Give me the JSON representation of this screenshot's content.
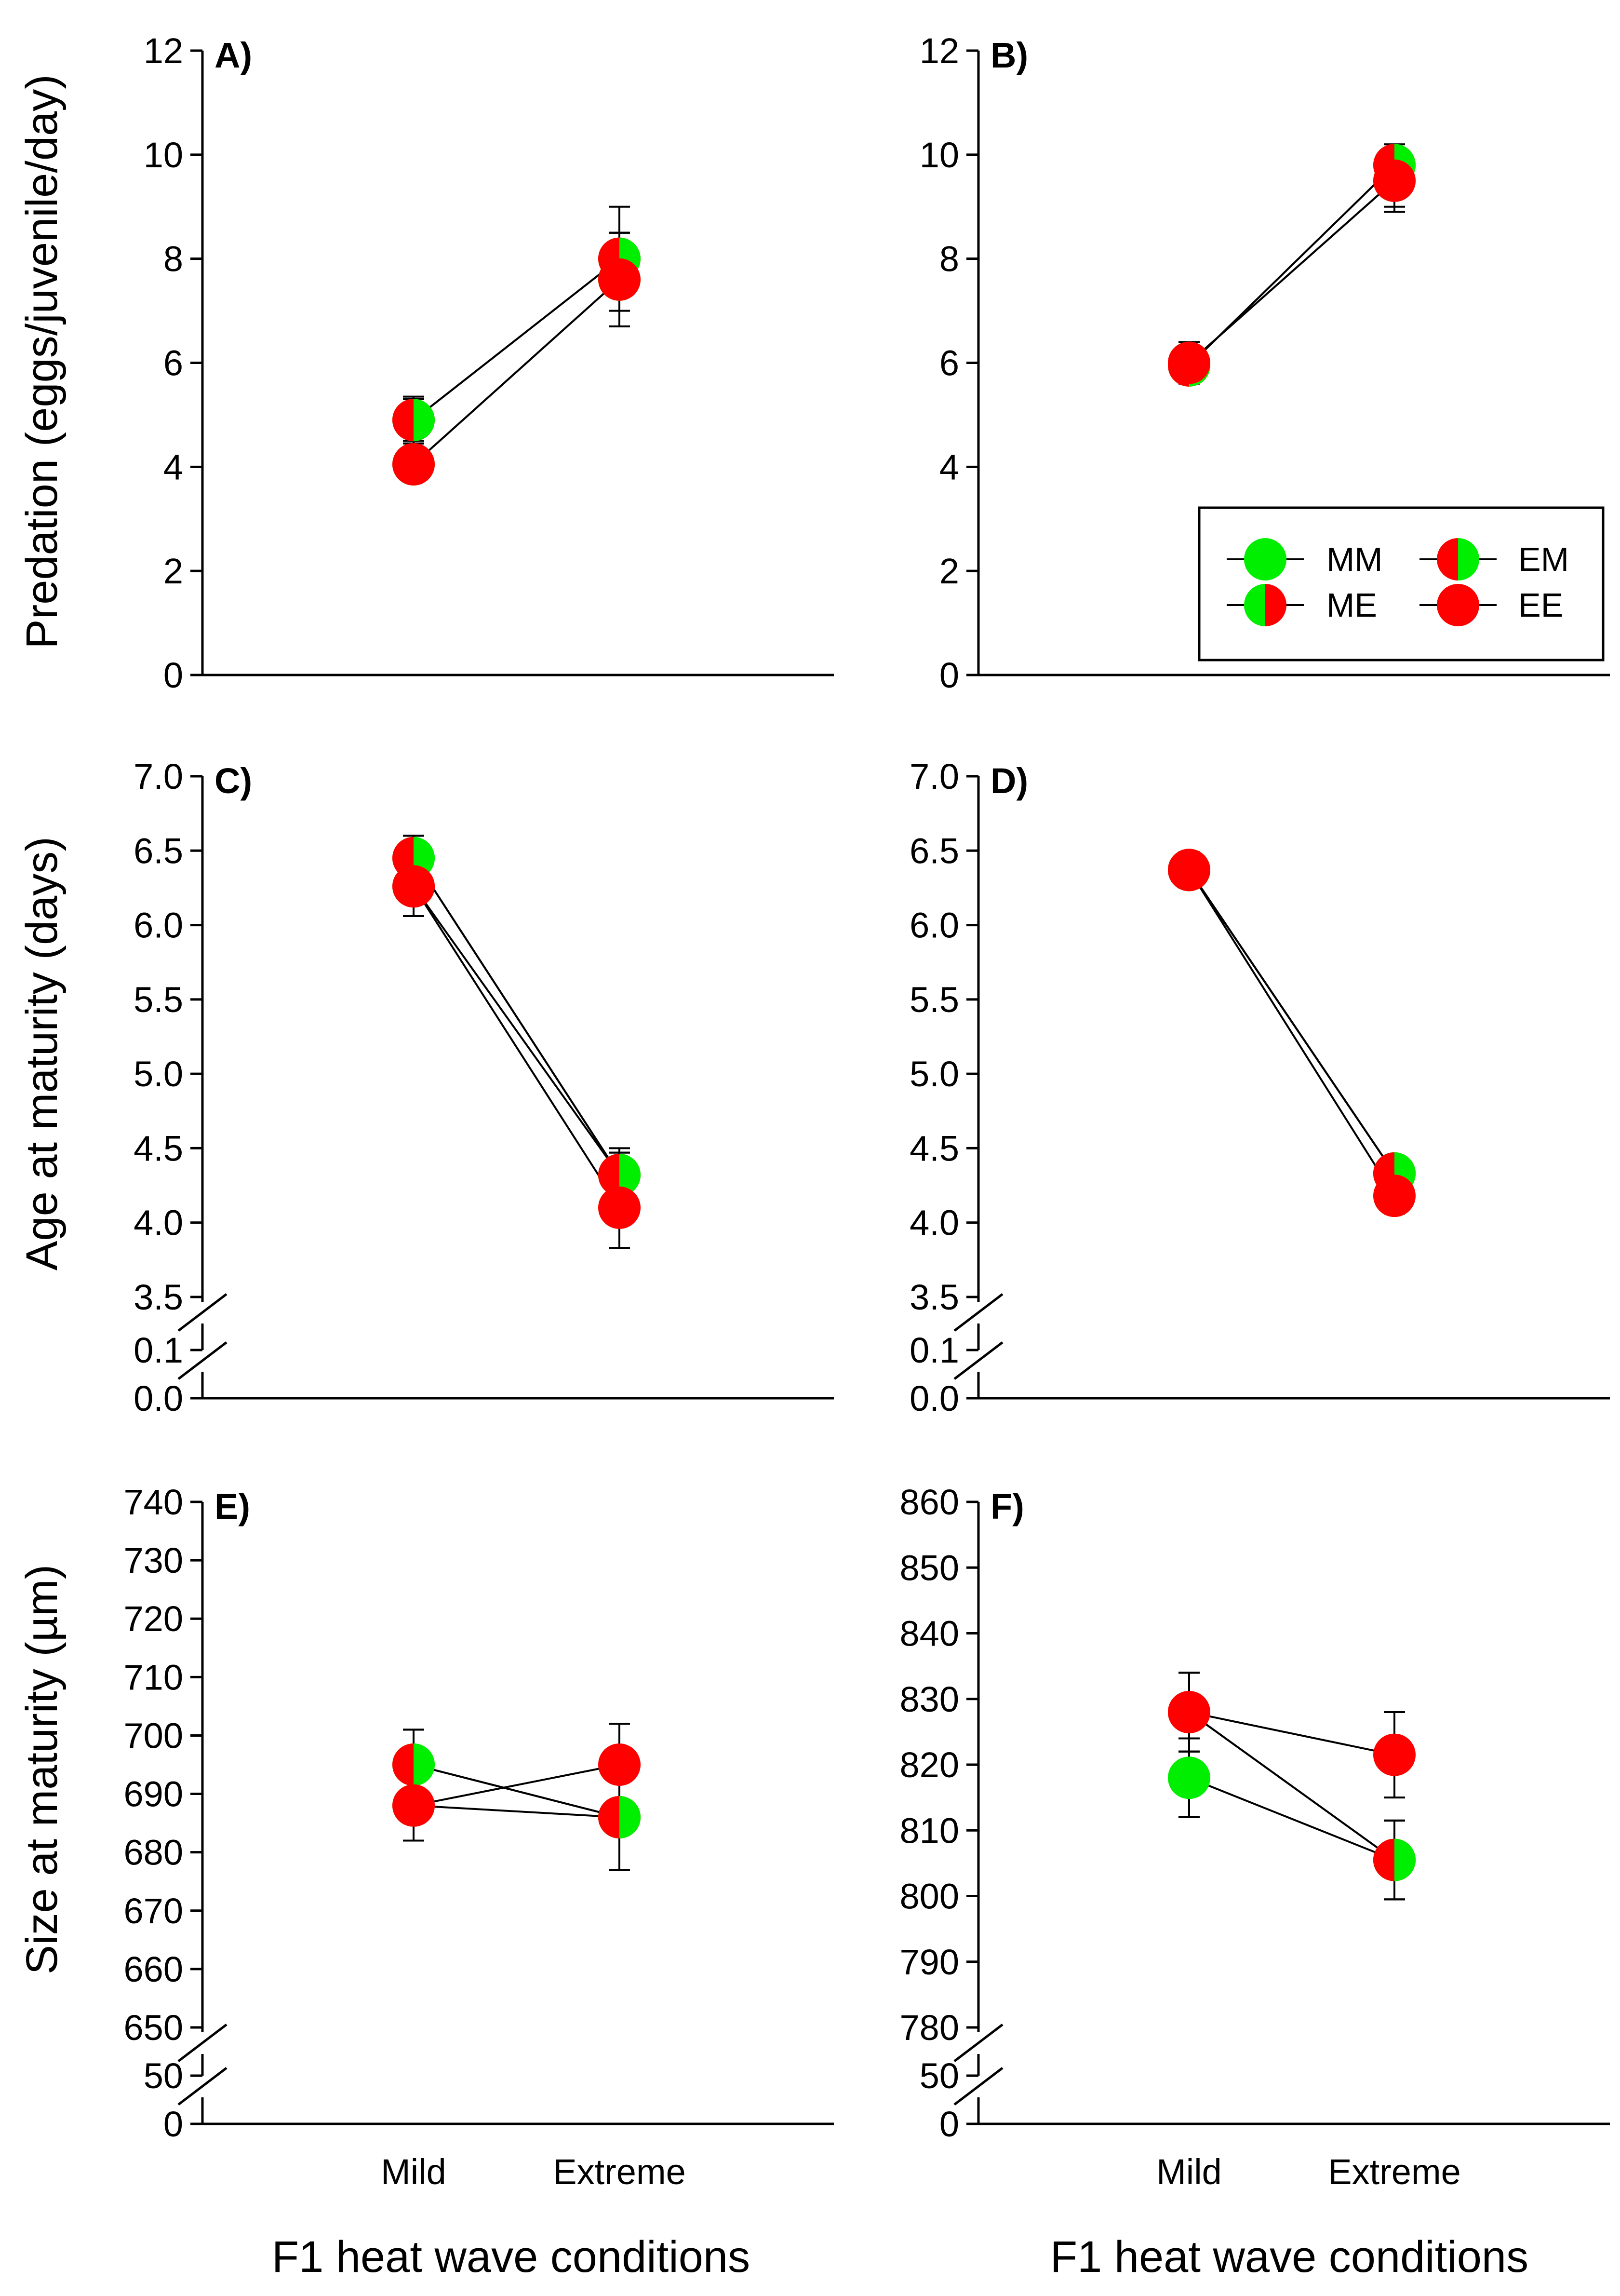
{
  "colors": {
    "green": "#00ee00",
    "red": "#ff0000",
    "axis": "#000000"
  },
  "legend": {
    "entries": [
      {
        "label": "MM",
        "key": "MM"
      },
      {
        "label": "EM",
        "key": "EM"
      },
      {
        "label": "ME",
        "key": "ME"
      },
      {
        "label": "EE",
        "key": "EE"
      }
    ]
  },
  "row_titles": {
    "predation": "Predation (eggs/juvenile/day)",
    "age": "Age at maturity (days)",
    "size": "Size at maturity (µm)"
  },
  "x_axis_title": "F1 heat wave conditions",
  "chart_data": [
    {
      "panel": "A)",
      "type": "line",
      "categories": [
        "Mild",
        "Extreme"
      ],
      "ylim": [
        0,
        12
      ],
      "yticks": [
        "0",
        "2",
        "4",
        "6",
        "8",
        "10",
        "12"
      ],
      "broken_axis": false,
      "series": [
        {
          "name": "MM",
          "values": [
            4.05,
            7.6
          ],
          "err": [
            [
              0.3,
              0.4
            ],
            [
              0.9,
              0.9
            ]
          ]
        },
        {
          "name": "ME",
          "values": [
            4.9,
            8.0
          ],
          "err": [
            [
              0.45,
              0.45
            ],
            [
              1.0,
              1.0
            ]
          ]
        },
        {
          "name": "EM",
          "values": [
            4.9,
            8.0
          ],
          "err": [
            [
              0.4,
              0.4
            ],
            [
              0.5,
              0.5
            ]
          ]
        },
        {
          "name": "EE",
          "values": [
            4.05,
            7.6
          ],
          "err": [
            [
              0.3,
              0.3
            ],
            [
              0.9,
              0.9
            ]
          ]
        }
      ]
    },
    {
      "panel": "B)",
      "type": "line",
      "categories": [
        "Mild",
        "Extreme"
      ],
      "ylim": [
        0,
        12
      ],
      "yticks": [
        "0",
        "2",
        "4",
        "6",
        "8",
        "10",
        "12"
      ],
      "broken_axis": false,
      "series": [
        {
          "name": "MM",
          "values": [
            6.0,
            9.5
          ],
          "err": [
            [
              0.4,
              0.4
            ],
            [
              0.6,
              0.6
            ]
          ]
        },
        {
          "name": "ME",
          "values": [
            5.95,
            9.8
          ],
          "err": [
            [
              0.35,
              0.35
            ],
            [
              0.4,
              0.4
            ]
          ]
        },
        {
          "name": "EM",
          "values": [
            5.95,
            9.8
          ],
          "err": [
            [
              0.3,
              0.3
            ],
            [
              0.3,
              0.3
            ]
          ]
        },
        {
          "name": "EE",
          "values": [
            6.0,
            9.5
          ],
          "err": [
            [
              0.3,
              0.3
            ],
            [
              0.5,
              0.5
            ]
          ]
        }
      ]
    },
    {
      "panel": "C)",
      "type": "line",
      "categories": [
        "Mild",
        "Extreme"
      ],
      "ylim": [
        3.5,
        7.0
      ],
      "yticks": [
        "4.0",
        "4.5",
        "5.0",
        "5.5",
        "6.0",
        "6.5",
        "7.0"
      ],
      "broken_axis": true,
      "break_labels": [
        "3.5",
        "0.1",
        "0.0"
      ],
      "series": [
        {
          "name": "MM",
          "values": [
            6.45,
            4.32
          ],
          "err": [
            [
              0.15,
              0.15
            ],
            [
              0.15,
              0.15
            ]
          ]
        },
        {
          "name": "ME",
          "values": [
            6.26,
            4.32
          ],
          "err": [
            [
              0.2,
              0.2
            ],
            [
              0.15,
              0.15
            ]
          ]
        },
        {
          "name": "EM",
          "values": [
            6.45,
            4.32
          ],
          "err": [
            [
              0.15,
              0.15
            ],
            [
              0.18,
              0.18
            ]
          ]
        },
        {
          "name": "EE",
          "values": [
            6.26,
            4.1
          ],
          "err": [
            [
              0.2,
              0.2
            ],
            [
              0.27,
              0.27
            ]
          ]
        }
      ]
    },
    {
      "panel": "D)",
      "type": "line",
      "categories": [
        "Mild",
        "Extreme"
      ],
      "ylim": [
        3.5,
        7.0
      ],
      "yticks": [
        "4.0",
        "4.5",
        "5.0",
        "5.5",
        "6.0",
        "6.5",
        "7.0"
      ],
      "broken_axis": true,
      "break_labels": [
        "3.5",
        "0.1",
        "0.0"
      ],
      "series": [
        {
          "name": "MM",
          "values": [
            6.37,
            4.33
          ],
          "err": [
            [
              0.1,
              0.1
            ],
            [
              0.1,
              0.1
            ]
          ]
        },
        {
          "name": "ME",
          "values": [
            6.37,
            4.33
          ],
          "err": [
            [
              0.1,
              0.1
            ],
            [
              0.12,
              0.12
            ]
          ]
        },
        {
          "name": "EM",
          "values": [
            6.37,
            4.33
          ],
          "err": [
            [
              0.12,
              0.12
            ],
            [
              0.1,
              0.1
            ]
          ]
        },
        {
          "name": "EE",
          "values": [
            6.37,
            4.18
          ],
          "err": [
            [
              0.1,
              0.1
            ],
            [
              0.12,
              0.12
            ]
          ]
        }
      ]
    },
    {
      "panel": "E)",
      "type": "line",
      "categories": [
        "Mild",
        "Extreme"
      ],
      "ylim": [
        650,
        740
      ],
      "yticks": [
        "660",
        "670",
        "680",
        "690",
        "700",
        "710",
        "720",
        "730",
        "740"
      ],
      "broken_axis": true,
      "break_labels": [
        "650",
        "50",
        "0"
      ],
      "series": [
        {
          "name": "MM",
          "values": [
            695,
            686
          ],
          "err": [
            [
              6,
              6
            ],
            [
              9,
              9
            ]
          ]
        },
        {
          "name": "ME",
          "values": [
            688,
            686
          ],
          "err": [
            [
              6,
              6
            ],
            [
              9,
              9
            ]
          ]
        },
        {
          "name": "EM",
          "values": [
            695,
            686
          ],
          "err": [
            [
              6,
              6
            ],
            [
              9,
              9
            ]
          ]
        },
        {
          "name": "EE",
          "values": [
            688,
            695
          ],
          "err": [
            [
              6,
              6
            ],
            [
              7,
              7
            ]
          ]
        }
      ]
    },
    {
      "panel": "F)",
      "type": "line",
      "categories": [
        "Mild",
        "Extreme"
      ],
      "ylim": [
        780,
        860
      ],
      "yticks": [
        "790",
        "800",
        "810",
        "820",
        "830",
        "840",
        "850",
        "860"
      ],
      "broken_axis": true,
      "break_labels": [
        "780",
        "50",
        "0"
      ],
      "series": [
        {
          "name": "MM",
          "values": [
            818,
            805.5
          ],
          "err": [
            [
              6,
              6
            ],
            [
              6,
              6
            ]
          ]
        },
        {
          "name": "ME",
          "values": [
            828,
            805.5
          ],
          "err": [
            [
              6,
              6
            ],
            [
              6,
              6
            ]
          ]
        },
        {
          "name": "EM",
          "values": [
            828,
            805.5
          ],
          "err": [
            [
              6,
              6
            ],
            [
              6,
              6
            ]
          ]
        },
        {
          "name": "EE",
          "values": [
            828,
            821.5
          ],
          "err": [
            [
              6,
              6
            ],
            [
              6.5,
              6.5
            ]
          ]
        }
      ]
    }
  ]
}
